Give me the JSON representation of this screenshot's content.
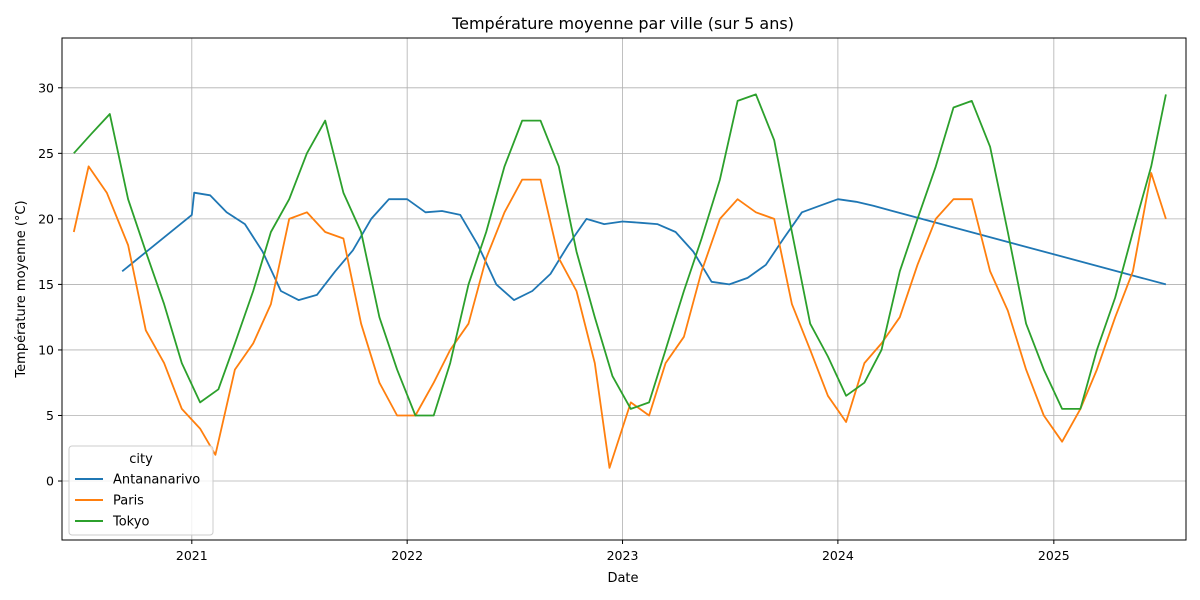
{
  "chart_data": {
    "type": "line",
    "title": "Température moyenne par ville (sur 5 ans)",
    "xlabel": "Date",
    "ylabel": "Température moyenne (°C)",
    "xlim": [
      "2020-05-26",
      "2025-08-13"
    ],
    "ylim": [
      -4.5,
      33.8
    ],
    "x_ticks": [
      "2021-01-01",
      "2022-01-01",
      "2023-01-01",
      "2024-01-01",
      "2025-01-01"
    ],
    "x_tick_labels": [
      "2021",
      "2022",
      "2023",
      "2024",
      "2025"
    ],
    "y_ticks": [
      0,
      5,
      10,
      15,
      20,
      25,
      30
    ],
    "y_tick_labels": [
      "0",
      "5",
      "10",
      "15",
      "20",
      "25",
      "30"
    ],
    "grid": true,
    "legend": {
      "title": "city",
      "placement": "lower-left"
    },
    "series": [
      {
        "name": "Antananarivo",
        "color": "#1f77b4",
        "points": [
          [
            "2020-09-05",
            16.0
          ],
          [
            "2021-01-01",
            20.3
          ],
          [
            "2021-01-05",
            22.0
          ],
          [
            "2021-02-01",
            21.8
          ],
          [
            "2021-03-01",
            20.5
          ],
          [
            "2021-04-01",
            19.6
          ],
          [
            "2021-05-01",
            17.5
          ],
          [
            "2021-06-01",
            14.5
          ],
          [
            "2021-07-01",
            13.8
          ],
          [
            "2021-08-01",
            14.2
          ],
          [
            "2021-09-01",
            16.0
          ],
          [
            "2021-10-01",
            17.6
          ],
          [
            "2021-11-01",
            20.0
          ],
          [
            "2021-12-01",
            21.5
          ],
          [
            "2022-01-01",
            21.5
          ],
          [
            "2022-02-01",
            20.5
          ],
          [
            "2022-03-01",
            20.6
          ],
          [
            "2022-04-01",
            20.3
          ],
          [
            "2022-05-01",
            18.0
          ],
          [
            "2022-06-01",
            15.0
          ],
          [
            "2022-07-01",
            13.8
          ],
          [
            "2022-08-01",
            14.5
          ],
          [
            "2022-09-01",
            15.8
          ],
          [
            "2022-10-01",
            18.0
          ],
          [
            "2022-11-01",
            20.0
          ],
          [
            "2022-12-01",
            19.6
          ],
          [
            "2023-01-01",
            19.8
          ],
          [
            "2023-02-01",
            19.7
          ],
          [
            "2023-03-01",
            19.6
          ],
          [
            "2023-04-01",
            19.0
          ],
          [
            "2023-05-01",
            17.5
          ],
          [
            "2023-06-01",
            15.2
          ],
          [
            "2023-07-01",
            15.0
          ],
          [
            "2023-08-01",
            15.5
          ],
          [
            "2023-09-01",
            16.5
          ],
          [
            "2023-10-01",
            18.5
          ],
          [
            "2023-11-01",
            20.5
          ],
          [
            "2023-12-01",
            21.0
          ],
          [
            "2024-01-01",
            21.5
          ],
          [
            "2024-02-01",
            21.3
          ],
          [
            "2024-03-01",
            21.0
          ],
          [
            "2025-07-10",
            15.0
          ]
        ]
      },
      {
        "name": "Paris",
        "color": "#ff7f0e",
        "points": [
          [
            "2020-06-15",
            19.0
          ],
          [
            "2020-07-10",
            24.0
          ],
          [
            "2020-08-10",
            22.0
          ],
          [
            "2020-09-15",
            18.0
          ],
          [
            "2020-10-15",
            11.5
          ],
          [
            "2020-11-15",
            9.0
          ],
          [
            "2020-12-15",
            5.5
          ],
          [
            "2021-01-15",
            4.0
          ],
          [
            "2021-02-10",
            2.0
          ],
          [
            "2021-03-15",
            8.5
          ],
          [
            "2021-04-15",
            10.5
          ],
          [
            "2021-05-15",
            13.5
          ],
          [
            "2021-06-15",
            20.0
          ],
          [
            "2021-07-15",
            20.5
          ],
          [
            "2021-08-15",
            19.0
          ],
          [
            "2021-09-15",
            18.5
          ],
          [
            "2021-10-15",
            12.0
          ],
          [
            "2021-11-15",
            7.5
          ],
          [
            "2021-12-15",
            5.0
          ],
          [
            "2022-01-15",
            5.0
          ],
          [
            "2022-02-15",
            7.5
          ],
          [
            "2022-03-15",
            10.0
          ],
          [
            "2022-04-15",
            12.0
          ],
          [
            "2022-05-15",
            17.0
          ],
          [
            "2022-06-15",
            20.5
          ],
          [
            "2022-07-15",
            23.0
          ],
          [
            "2022-08-15",
            23.0
          ],
          [
            "2022-09-15",
            17.0
          ],
          [
            "2022-10-15",
            14.5
          ],
          [
            "2022-11-15",
            9.0
          ],
          [
            "2022-12-10",
            1.0
          ],
          [
            "2023-01-15",
            6.0
          ],
          [
            "2023-02-15",
            5.0
          ],
          [
            "2023-03-15",
            9.0
          ],
          [
            "2023-04-15",
            11.0
          ],
          [
            "2023-05-15",
            16.0
          ],
          [
            "2023-06-15",
            20.0
          ],
          [
            "2023-07-15",
            21.5
          ],
          [
            "2023-08-15",
            20.5
          ],
          [
            "2023-09-15",
            20.0
          ],
          [
            "2023-10-15",
            13.5
          ],
          [
            "2023-11-15",
            10.0
          ],
          [
            "2023-12-15",
            6.5
          ],
          [
            "2024-01-15",
            4.5
          ],
          [
            "2024-02-15",
            9.0
          ],
          [
            "2024-03-15",
            10.5
          ],
          [
            "2024-04-15",
            12.5
          ],
          [
            "2024-05-15",
            16.5
          ],
          [
            "2024-06-15",
            20.0
          ],
          [
            "2024-07-15",
            21.5
          ],
          [
            "2024-08-15",
            21.5
          ],
          [
            "2024-09-15",
            16.0
          ],
          [
            "2024-10-15",
            13.0
          ],
          [
            "2024-11-15",
            8.5
          ],
          [
            "2024-12-15",
            5.0
          ],
          [
            "2025-01-15",
            3.0
          ],
          [
            "2025-02-15",
            5.5
          ],
          [
            "2025-03-15",
            8.5
          ],
          [
            "2025-04-15",
            12.5
          ],
          [
            "2025-05-15",
            16.0
          ],
          [
            "2025-06-15",
            23.5
          ],
          [
            "2025-07-10",
            20.0
          ]
        ]
      },
      {
        "name": "Tokyo",
        "color": "#2ca02c",
        "points": [
          [
            "2020-06-15",
            25.0
          ],
          [
            "2020-07-15",
            26.5
          ],
          [
            "2020-08-15",
            28.0
          ],
          [
            "2020-09-15",
            21.5
          ],
          [
            "2020-10-15",
            17.5
          ],
          [
            "2020-11-15",
            13.5
          ],
          [
            "2020-12-15",
            9.0
          ],
          [
            "2021-01-15",
            6.0
          ],
          [
            "2021-02-15",
            7.0
          ],
          [
            "2021-03-15",
            10.5
          ],
          [
            "2021-04-15",
            14.5
          ],
          [
            "2021-05-15",
            19.0
          ],
          [
            "2021-06-15",
            21.5
          ],
          [
            "2021-07-15",
            25.0
          ],
          [
            "2021-08-15",
            27.5
          ],
          [
            "2021-09-15",
            22.0
          ],
          [
            "2021-10-15",
            19.0
          ],
          [
            "2021-11-15",
            12.5
          ],
          [
            "2021-12-15",
            8.5
          ],
          [
            "2022-01-15",
            5.0
          ],
          [
            "2022-02-15",
            5.0
          ],
          [
            "2022-03-15",
            9.0
          ],
          [
            "2022-04-15",
            15.0
          ],
          [
            "2022-05-15",
            19.0
          ],
          [
            "2022-06-15",
            24.0
          ],
          [
            "2022-07-15",
            27.5
          ],
          [
            "2022-08-15",
            27.5
          ],
          [
            "2022-09-15",
            24.0
          ],
          [
            "2022-10-15",
            17.5
          ],
          [
            "2022-11-15",
            12.5
          ],
          [
            "2022-12-15",
            8.0
          ],
          [
            "2023-01-15",
            5.5
          ],
          [
            "2023-02-15",
            6.0
          ],
          [
            "2023-03-15",
            10.0
          ],
          [
            "2023-04-15",
            14.5
          ],
          [
            "2023-05-15",
            18.5
          ],
          [
            "2023-06-15",
            23.0
          ],
          [
            "2023-07-15",
            29.0
          ],
          [
            "2023-08-15",
            29.5
          ],
          [
            "2023-09-15",
            26.0
          ],
          [
            "2023-10-15",
            19.0
          ],
          [
            "2023-11-15",
            12.0
          ],
          [
            "2023-12-15",
            9.5
          ],
          [
            "2024-01-15",
            6.5
          ],
          [
            "2024-02-15",
            7.5
          ],
          [
            "2024-03-15",
            10.0
          ],
          [
            "2024-04-15",
            16.0
          ],
          [
            "2024-05-15",
            20.0
          ],
          [
            "2024-06-15",
            24.0
          ],
          [
            "2024-07-15",
            28.5
          ],
          [
            "2024-08-15",
            29.0
          ],
          [
            "2024-09-15",
            25.5
          ],
          [
            "2024-10-15",
            19.0
          ],
          [
            "2024-11-15",
            12.0
          ],
          [
            "2024-12-15",
            8.5
          ],
          [
            "2025-01-15",
            5.5
          ],
          [
            "2025-02-15",
            5.5
          ],
          [
            "2025-03-15",
            10.0
          ],
          [
            "2025-04-15",
            14.0
          ],
          [
            "2025-05-15",
            19.0
          ],
          [
            "2025-06-15",
            24.0
          ],
          [
            "2025-07-10",
            29.5
          ]
        ]
      }
    ]
  }
}
